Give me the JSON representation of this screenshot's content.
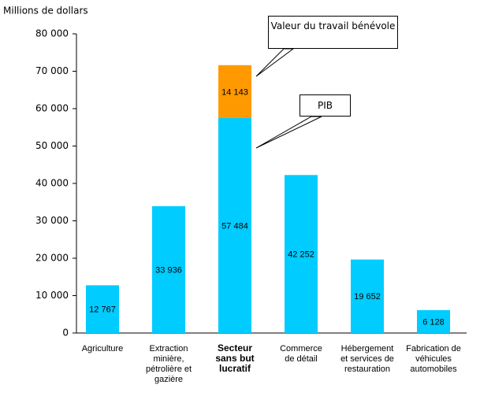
{
  "chart_data": {
    "type": "bar",
    "stacked": true,
    "y_label": "Millions de dollars",
    "categories": [
      [
        "Agriculture"
      ],
      [
        "Extraction",
        "minière,",
        "pétrolière et",
        "gazière"
      ],
      [
        "Secteur",
        "sans but",
        "lucratif"
      ],
      [
        "Commerce",
        "de détail"
      ],
      [
        "Hébergement",
        "et services de",
        "restauration"
      ],
      [
        "Fabrication de",
        "véhicules",
        "automobiles"
      ]
    ],
    "series": [
      {
        "name": "PIB",
        "color": "#00ccff",
        "values": [
          12767,
          33936,
          57484,
          42252,
          19652,
          6128
        ],
        "value_labels": [
          "12 767",
          "33 936",
          "57 484",
          "42 252",
          "19 652",
          "6 128"
        ]
      },
      {
        "name": "Valeur du travail bénévole",
        "color": "#ff9900",
        "values": [
          null,
          null,
          14143,
          null,
          null,
          null
        ],
        "value_labels": [
          null,
          null,
          "14 143",
          null,
          null,
          null
        ]
      }
    ],
    "ylim": [
      0,
      80000
    ],
    "yticks": [
      0,
      {
        "value": 10000,
        "label": "10 000"
      },
      {
        "value": 20000,
        "label": "20 000"
      },
      {
        "value": 30000,
        "label": "30 000"
      },
      {
        "value": 40000,
        "label": "40 000"
      },
      {
        "value": 50000,
        "label": "50 000"
      },
      {
        "value": 60000,
        "label": "60 000"
      },
      {
        "value": 70000,
        "label": "70 000"
      },
      {
        "value": 80000,
        "label": "80 000"
      }
    ]
  }
}
